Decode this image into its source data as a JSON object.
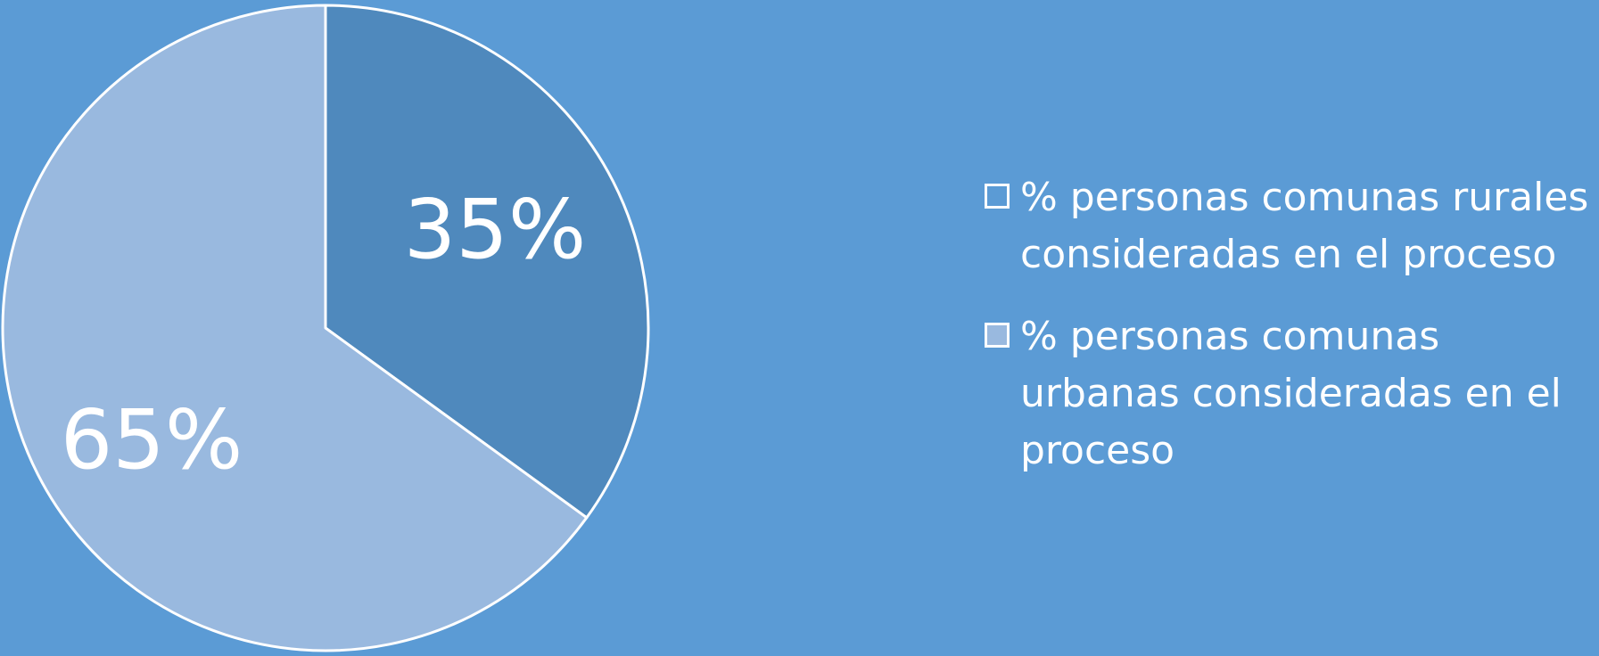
{
  "colors": {
    "background": "#5b9bd5",
    "slice_rural": "#4f89bd",
    "slice_urban": "#99b9df",
    "outline": "#ffffff",
    "text": "#ffffff"
  },
  "chart_data": {
    "type": "pie",
    "title": "",
    "start_angle_deg": 0,
    "direction": "clockwise",
    "slices": [
      {
        "label": "% personas comunas rurales consideradas en el proceso",
        "value": 35,
        "value_label": "35%",
        "color": "#4f89bd",
        "legend_swatch_color": "#5b9bd5"
      },
      {
        "label": "% personas comunas urbanas consideradas en el proceso",
        "value": 65,
        "value_label": "65%",
        "color": "#99b9df",
        "legend_swatch_color": "#99b9df"
      }
    ],
    "legend_placement": "right"
  }
}
